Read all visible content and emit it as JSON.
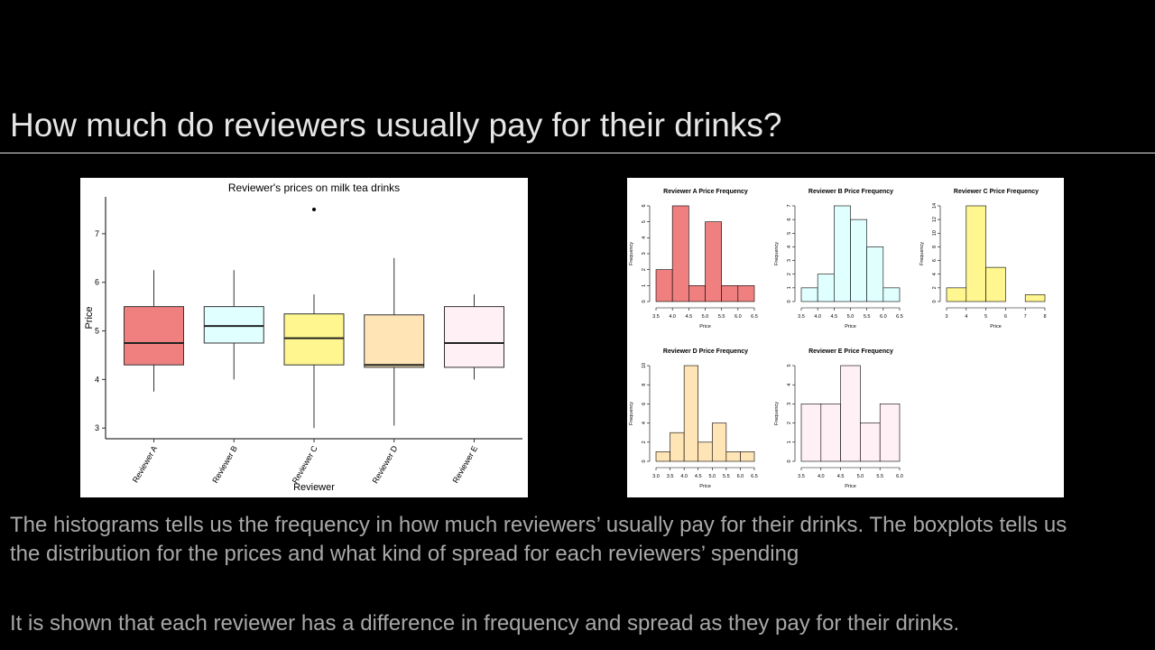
{
  "title": "How much do reviewers usually pay for their drinks?",
  "paragraphs": [
    "The histograms tells us the frequency in how much reviewers’ usually pay for their drinks. The boxplots tells us the distribution for the prices and what kind of spread for each reviewers’ spending",
    "It is shown that each reviewer has a difference in frequency and spread as they pay for their drinks."
  ],
  "chart_data": [
    {
      "type": "box",
      "title": "Reviewer's prices on milk tea drinks",
      "x_label": "Reviewer",
      "y_label": "Price",
      "categories": [
        "Reviewer A",
        "Reviewer B",
        "Reviewer C",
        "Reviewer D",
        "Reviewer E"
      ],
      "colors": [
        "#f08080",
        "#e0ffff",
        "#fff68f",
        "#ffe4b5",
        "#fff0f5"
      ],
      "boxes": [
        {
          "whisker_low": 3.75,
          "q1": 4.3,
          "median": 4.75,
          "q3": 5.5,
          "whisker_high": 6.25
        },
        {
          "whisker_low": 4.0,
          "q1": 4.75,
          "median": 5.1,
          "q3": 5.5,
          "whisker_high": 6.25
        },
        {
          "whisker_low": 3.0,
          "q1": 4.3,
          "median": 4.85,
          "q3": 5.35,
          "whisker_high": 5.75,
          "outliers": [
            7.5
          ]
        },
        {
          "whisker_low": 3.05,
          "q1": 4.25,
          "median": 4.3,
          "q3": 5.33,
          "whisker_high": 6.5
        },
        {
          "whisker_low": 4.0,
          "q1": 4.25,
          "median": 4.75,
          "q3": 5.5,
          "whisker_high": 5.75
        }
      ],
      "ylim": [
        2.78,
        7.76
      ],
      "yticks": [
        3,
        4,
        5,
        6,
        7
      ]
    },
    {
      "type": "histogram",
      "title": "Reviewer A Price Frequency",
      "x_label": "Price",
      "y_label": "Frequency",
      "color": "#f08080",
      "bins": [
        3.5,
        4.0,
        4.5,
        5.0,
        5.5,
        6.0,
        6.5
      ],
      "values": [
        2,
        6,
        1,
        5,
        1,
        1
      ],
      "xlim": [
        3.5,
        6.5
      ],
      "xticks": [
        3.5,
        {
          "value": 4,
          "label": "4.0"
        },
        4.5,
        {
          "value": 5,
          "label": "5.0"
        },
        5.5,
        {
          "value": 6,
          "label": "6.0"
        },
        6.5
      ],
      "ylim": [
        0,
        6
      ],
      "yticks": [
        0,
        1,
        2,
        3,
        4,
        5,
        6
      ]
    },
    {
      "type": "histogram",
      "title": "Reviewer B Price Frequency",
      "x_label": "Price",
      "y_label": "Frequency",
      "color": "#e0ffff",
      "bins": [
        3.5,
        4.0,
        4.5,
        5.0,
        5.5,
        6.0,
        6.5
      ],
      "values": [
        1,
        2,
        7,
        6,
        4,
        1
      ],
      "xlim": [
        3.5,
        6.5
      ],
      "xticks": [
        3.5,
        {
          "value": 4,
          "label": "4.0"
        },
        4.5,
        {
          "value": 5,
          "label": "5.0"
        },
        5.5,
        {
          "value": 6,
          "label": "6.0"
        },
        6.5
      ],
      "ylim": [
        0,
        7
      ],
      "yticks": [
        0,
        1,
        2,
        3,
        4,
        5,
        6,
        7
      ]
    },
    {
      "type": "histogram",
      "title": "Reviewer C Price Frequency",
      "x_label": "Price",
      "y_label": "Frequency",
      "color": "#fff68f",
      "bins": [
        3,
        4,
        5,
        6,
        7,
        8
      ],
      "values": [
        2,
        14,
        5,
        0,
        1
      ],
      "xlim": [
        3,
        8
      ],
      "xticks": [
        3,
        4,
        5,
        6,
        7,
        8
      ],
      "ylim": [
        0,
        14
      ],
      "yticks": [
        0,
        2,
        4,
        6,
        8,
        10,
        12,
        14
      ]
    },
    {
      "type": "histogram",
      "title": "Reviewer D Price Frequency",
      "x_label": "Price",
      "y_label": "Frequency",
      "color": "#ffe4b5",
      "bins": [
        3.0,
        3.5,
        4.0,
        4.5,
        5.0,
        5.5,
        6.0,
        6.5
      ],
      "values": [
        1,
        3,
        10,
        2,
        4,
        1,
        1
      ],
      "xlim": [
        3.0,
        6.5
      ],
      "xticks": [
        {
          "value": 3,
          "label": "3.0"
        },
        3.5,
        {
          "value": 4,
          "label": "4.0"
        },
        4.5,
        {
          "value": 5,
          "label": "5.0"
        },
        5.5,
        {
          "value": 6,
          "label": "6.0"
        },
        6.5
      ],
      "ylim": [
        0,
        10
      ],
      "yticks": [
        0,
        2,
        4,
        6,
        8,
        10
      ]
    },
    {
      "type": "histogram",
      "title": "Reviewer E Price Frequency",
      "x_label": "Price",
      "y_label": "Frequency",
      "color": "#fff0f5",
      "bins": [
        3.5,
        4.0,
        4.5,
        5.0,
        5.5,
        6.0
      ],
      "values": [
        3,
        3,
        5,
        2,
        3
      ],
      "xlim": [
        3.5,
        6.0
      ],
      "xticks": [
        3.5,
        {
          "value": 4,
          "label": "4.0"
        },
        4.5,
        {
          "value": 5,
          "label": "5.0"
        },
        5.5,
        {
          "value": 6,
          "label": "6.0"
        }
      ],
      "ylim": [
        0,
        5
      ],
      "yticks": [
        0,
        1,
        2,
        3,
        4,
        5
      ]
    }
  ]
}
